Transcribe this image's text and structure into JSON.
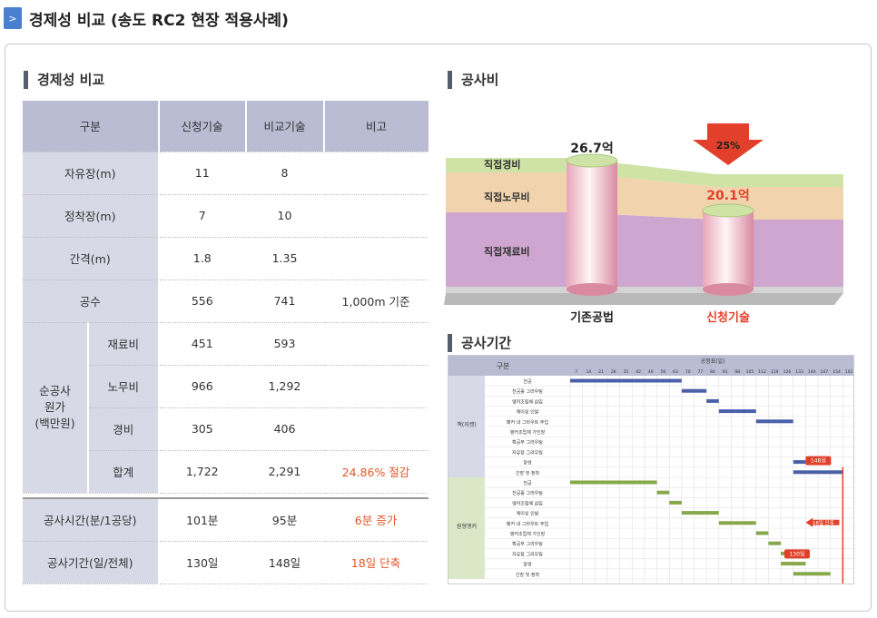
{
  "page": {
    "title": "경제성 비교 (송도 RC2 현장 적용사례)",
    "chevron": ">"
  },
  "sections": {
    "economy": "경제성 비교",
    "cost": "공사비",
    "period": "공사기간"
  },
  "table": {
    "headers": [
      "구분",
      "신청기술",
      "비교기술",
      "비고"
    ],
    "rows": [
      {
        "label": "자유장(m)",
        "new": "11",
        "old": "8",
        "note": ""
      },
      {
        "label": "정착장(m)",
        "new": "7",
        "old": "10",
        "note": ""
      },
      {
        "label": "간격(m)",
        "new": "1.8",
        "old": "1.35",
        "note": ""
      },
      {
        "label": "공수",
        "new": "556",
        "old": "741",
        "note": "1,000m 기준"
      }
    ],
    "group_label": [
      "순공사",
      "원가",
      "(백만원)"
    ],
    "group_rows": [
      {
        "label": "재료비",
        "new": "451",
        "old": "593",
        "note": ""
      },
      {
        "label": "노무비",
        "new": "966",
        "old": "1,292",
        "note": ""
      },
      {
        "label": "경비",
        "new": "305",
        "old": "406",
        "note": ""
      },
      {
        "label": "합계",
        "new": "1,722",
        "old": "2,291",
        "note": "24.86% 절감"
      }
    ],
    "bottom_rows": [
      {
        "label": "공사시간(분/1공당)",
        "new": "101분",
        "old": "95분",
        "note": "6분 증가"
      },
      {
        "label": "공사기간(일/전체)",
        "new": "130일",
        "old": "148일",
        "note": "18일 단축"
      }
    ]
  },
  "cost": {
    "layers": [
      "직접경비",
      "직접노무비",
      "직접재료비"
    ],
    "left_value": "26.7억",
    "right_value": "20.1억",
    "reduction": "25%",
    "left_label": "기존공법",
    "right_label": "신청기술",
    "colors": {
      "expense": "#cfe3a6",
      "labor": "#f1d3ae",
      "material": "#cfa6cf",
      "accent": "#e2402a"
    }
  },
  "gantt": {
    "header_left": "구분",
    "header_right": "공정표(일)",
    "days": [
      "7",
      "14",
      "21",
      "28",
      "35",
      "42",
      "49",
      "56",
      "63",
      "70",
      "77",
      "84",
      "91",
      "98",
      "105",
      "112",
      "119",
      "126",
      "133",
      "140",
      "147",
      "154",
      "161"
    ],
    "group1": "책(자켓)",
    "group2": "원형앵커",
    "tasks1": [
      "천공",
      "천공홀 그라우팅",
      "앵커조립체 삽입",
      "케이싱 인발",
      "패커 내 그라우트 주입",
      "앵커조립체 가인장",
      "확공부 그라우팅",
      "자유장 그라우팅",
      "양생",
      "긴장 및 정착"
    ],
    "tasks2": [
      "천공",
      "천공홀 그라우팅",
      "앵커조립체 삽입",
      "케이싱 인발",
      "패커 내 그라우트 주입",
      "앵커조립체 가인장",
      "확공부 그라우팅",
      "자유장 그라우팅",
      "양생",
      "긴장 및 정착"
    ],
    "label148": "148일",
    "label130": "130일",
    "label18": "18일 단축"
  }
}
